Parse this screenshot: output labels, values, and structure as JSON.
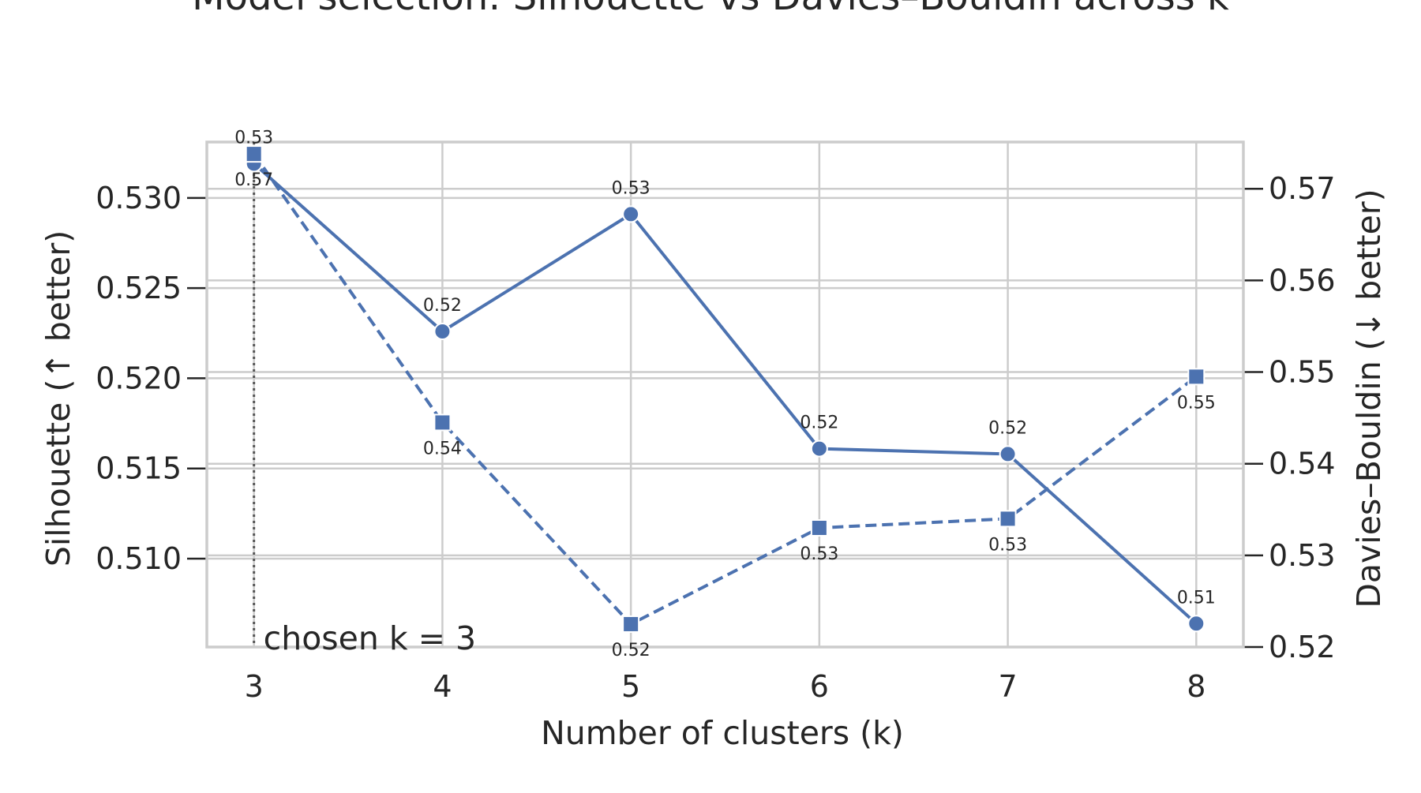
{
  "chart_data": {
    "type": "line",
    "title": "Model selection: Silhouette vs Davies–Bouldin across k",
    "xlabel": "Number of clusters (k)",
    "ylabel": "Silhouette (↑ better)",
    "ylabel_right": "Davies–Bouldin (↓ better)",
    "x": [
      3,
      4,
      5,
      6,
      7,
      8
    ],
    "xticks": [
      "3",
      "4",
      "5",
      "6",
      "7",
      "8"
    ],
    "ylim": [
      0.5051,
      0.5331
    ],
    "yticks": [
      "0.510",
      "0.515",
      "0.520",
      "0.525",
      "0.530"
    ],
    "ylim_right": [
      0.52,
      0.5751
    ],
    "yticks_right": [
      "0.52",
      "0.53",
      "0.54",
      "0.55",
      "0.56",
      "0.57"
    ],
    "grid": true,
    "color": "#4c72b0",
    "series": [
      {
        "axis": "left",
        "marker": "circle",
        "linestyle": "solid",
        "values": [
          0.5319,
          0.5226,
          0.5291,
          0.5161,
          0.5158,
          0.5064
        ],
        "labels": [
          "0.53",
          "0.52",
          "0.53",
          "0.52",
          "0.52",
          "0.51"
        ]
      },
      {
        "axis": "right",
        "marker": "square",
        "linestyle": "dashed",
        "values": [
          0.5738,
          0.5445,
          0.5225,
          0.533,
          0.534,
          0.5495
        ],
        "labels": [
          "0.57",
          "0.54",
          "0.52",
          "0.53",
          "0.53",
          "0.55"
        ]
      }
    ],
    "annotation": {
      "x": 3,
      "text": "chosen k = 3"
    }
  }
}
